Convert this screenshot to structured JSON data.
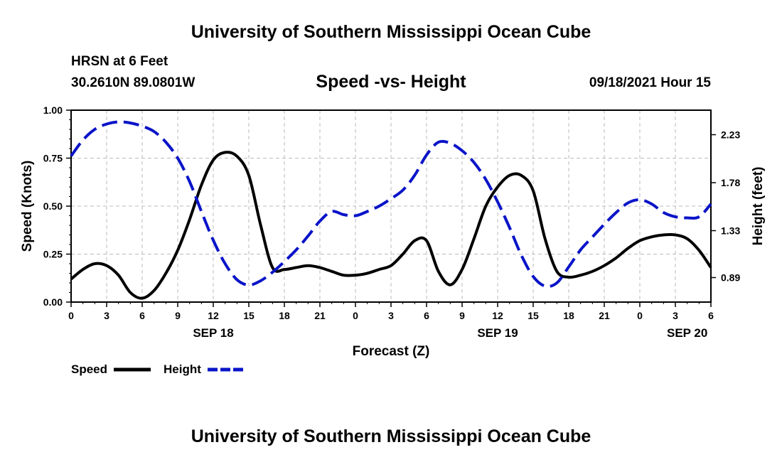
{
  "header": {
    "title": "University of Southern Mississippi Ocean Cube",
    "station": "HRSN at 6 Feet",
    "coords": "30.2610N  89.0801W",
    "subtitle": "Speed -vs- Height",
    "datetime": "09/18/2021 Hour 15"
  },
  "footer": {
    "title": "University of Southern Mississippi Ocean Cube"
  },
  "chart_data": {
    "type": "line",
    "title": "Speed -vs- Height",
    "xlabel": "Forecast (Z)",
    "ylabel": "Speed (Knots)",
    "y2label": "Height (feet)",
    "xlim": [
      0,
      54
    ],
    "ylim": [
      0,
      1.0
    ],
    "y2lim": [
      0.66,
      2.46
    ],
    "grid": true,
    "x_tick_labels": [
      "0",
      "3",
      "6",
      "9",
      "12",
      "15",
      "18",
      "21",
      "0",
      "3",
      "6",
      "9",
      "12",
      "15",
      "18",
      "21",
      "0",
      "3",
      "6"
    ],
    "date_labels": [
      {
        "label": "SEP 18",
        "x": 12
      },
      {
        "label": "SEP 19",
        "x": 36
      },
      {
        "label": "SEP 20",
        "x": 52
      }
    ],
    "y_ticks": [
      "0.00",
      "0.25",
      "0.50",
      "0.75",
      "1.00"
    ],
    "y2_ticks": [
      "0.89",
      "1.33",
      "1.78",
      "2.23"
    ],
    "legend": {
      "placement": "bottom-left",
      "speed_label": "Speed",
      "height_label": "Height"
    },
    "colors": {
      "speed": "#000000",
      "height": "#0a14c8",
      "grid": "#bbbbbb"
    },
    "series": [
      {
        "name": "Speed",
        "axis": "left",
        "style": "solid",
        "x": [
          0,
          1,
          2,
          3,
          4,
          5,
          6,
          7,
          8,
          9,
          10,
          11,
          12,
          13,
          14,
          15,
          16,
          17,
          18,
          19,
          20,
          21,
          22,
          23,
          24,
          25,
          26,
          27,
          28,
          29,
          30,
          31,
          32,
          33,
          34,
          35,
          36,
          37,
          38,
          39,
          40,
          41,
          42,
          43,
          44,
          45,
          46,
          47,
          48,
          49,
          50,
          51,
          52,
          53,
          54
        ],
        "values": [
          0.12,
          0.17,
          0.2,
          0.19,
          0.14,
          0.05,
          0.02,
          0.06,
          0.15,
          0.27,
          0.43,
          0.61,
          0.74,
          0.78,
          0.76,
          0.66,
          0.4,
          0.18,
          0.17,
          0.18,
          0.19,
          0.18,
          0.16,
          0.14,
          0.14,
          0.15,
          0.17,
          0.19,
          0.25,
          0.32,
          0.32,
          0.16,
          0.09,
          0.17,
          0.33,
          0.5,
          0.6,
          0.66,
          0.66,
          0.58,
          0.33,
          0.16,
          0.13,
          0.14,
          0.16,
          0.19,
          0.23,
          0.28,
          0.32,
          0.34,
          0.35,
          0.35,
          0.33,
          0.27,
          0.18
        ]
      },
      {
        "name": "Height",
        "axis": "right",
        "style": "dashed",
        "x": [
          0,
          1,
          2,
          3,
          4,
          5,
          6,
          7,
          8,
          9,
          10,
          11,
          12,
          13,
          14,
          15,
          16,
          17,
          18,
          19,
          20,
          21,
          22,
          23,
          24,
          25,
          26,
          27,
          28,
          29,
          30,
          31,
          32,
          33,
          34,
          35,
          36,
          37,
          38,
          39,
          40,
          41,
          42,
          43,
          44,
          45,
          46,
          47,
          48,
          49,
          50,
          51,
          52,
          53,
          54
        ],
        "values": [
          2.03,
          2.18,
          2.28,
          2.33,
          2.35,
          2.34,
          2.31,
          2.26,
          2.16,
          2.01,
          1.79,
          1.51,
          1.24,
          1.02,
          0.87,
          0.82,
          0.86,
          0.94,
          1.04,
          1.15,
          1.28,
          1.42,
          1.51,
          1.48,
          1.47,
          1.51,
          1.56,
          1.63,
          1.71,
          1.85,
          2.04,
          2.16,
          2.15,
          2.08,
          1.97,
          1.81,
          1.6,
          1.36,
          1.1,
          0.9,
          0.81,
          0.84,
          0.99,
          1.15,
          1.27,
          1.39,
          1.5,
          1.59,
          1.62,
          1.58,
          1.5,
          1.46,
          1.45,
          1.46,
          1.58
        ]
      }
    ]
  }
}
